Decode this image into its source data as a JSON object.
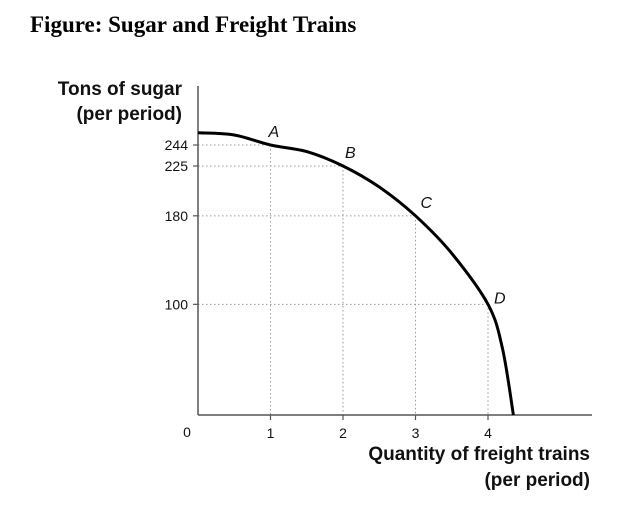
{
  "figure": {
    "title": "Figure: Sugar and Freight Trains"
  },
  "chart_data": {
    "type": "line",
    "title": "Figure: Sugar and Freight Trains",
    "ylabel_lines": [
      "Tons of sugar",
      "(per period)"
    ],
    "xlabel_lines": [
      "Quantity of freight trains",
      "(per period)"
    ],
    "origin_label": "0",
    "x_ticks": [
      1,
      2,
      3,
      4
    ],
    "y_ticks": [
      244,
      225,
      180,
      100
    ],
    "xlim": [
      0,
      5.4
    ],
    "ylim": [
      0,
      300
    ],
    "grid": false,
    "legend": "none",
    "curve": {
      "x": [
        0,
        0.5,
        1,
        1.5,
        2,
        2.5,
        3,
        3.5,
        4,
        4.2,
        4.35
      ],
      "y": [
        255,
        253,
        244,
        238,
        225,
        206,
        180,
        146,
        100,
        60,
        0
      ]
    },
    "points": [
      {
        "label": "A",
        "x": 1,
        "y": 244
      },
      {
        "label": "B",
        "x": 2,
        "y": 225
      },
      {
        "label": "C",
        "x": 3,
        "y": 180
      },
      {
        "label": "D",
        "x": 4,
        "y": 100
      }
    ],
    "colors": {
      "curve": "#000000",
      "axis": "#555555",
      "guides": "#9a9a9a"
    }
  }
}
